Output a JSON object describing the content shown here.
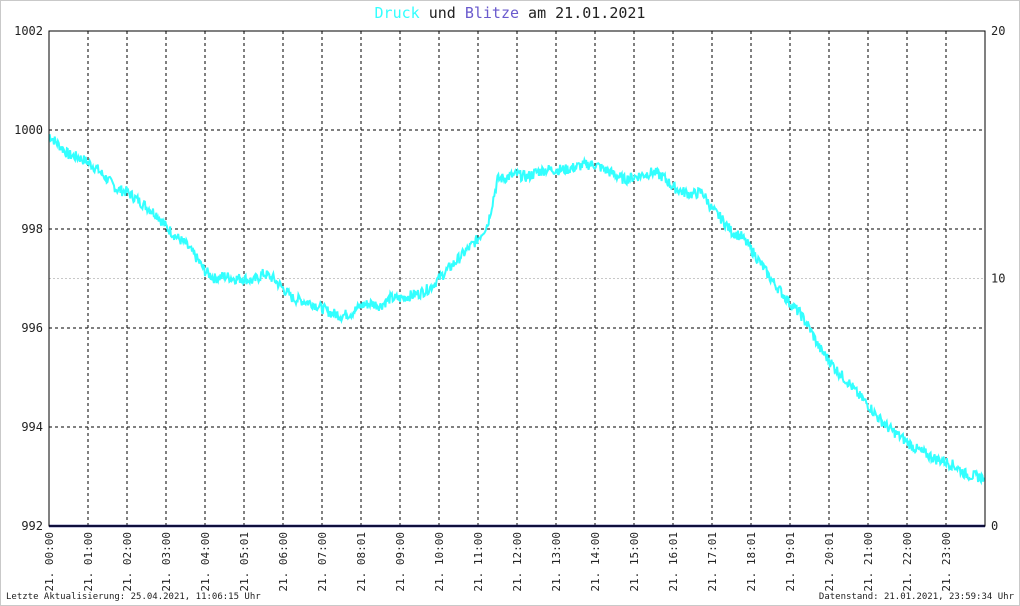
{
  "title": {
    "part1": "Druck",
    "part2": " und ",
    "part3": "Blitze",
    "part4": " am 21.01.2021",
    "color1": "#33ffff",
    "color3": "#6a5acd",
    "color_text": "#222222"
  },
  "footer": {
    "left": "Letzte Aktualisierung: 25.04.2021, 11:06:15 Uhr",
    "right": "Datenstand: 21.01.2021, 23:59:34 Uhr"
  },
  "chart_data": {
    "type": "line",
    "xlabel": "",
    "ylabel": "",
    "ylim_left": [
      992,
      1002
    ],
    "ylim_right": [
      0,
      20
    ],
    "yticks_left": [
      "1002",
      "1000",
      "998",
      "996",
      "994",
      "992"
    ],
    "yticks_right": [
      "20",
      "10",
      "0"
    ],
    "xticks": [
      "21. 00:00",
      "21. 01:00",
      "21. 02:00",
      "21. 03:00",
      "21. 04:00",
      "21. 05:01",
      "21. 06:00",
      "21. 07:00",
      "21. 08:01",
      "21. 09:00",
      "21. 10:00",
      "21. 11:00",
      "21. 12:00",
      "21. 13:00",
      "21. 14:00",
      "21. 15:00",
      "21. 16:01",
      "21. 17:01",
      "21. 18:01",
      "21. 19:01",
      "21. 20:01",
      "21. 21:00",
      "21. 22:00",
      "21. 23:00"
    ],
    "grid": true,
    "series": [
      {
        "name": "Druck",
        "color": "#33ffff",
        "axis": "left",
        "hours": [
          0,
          0.25,
          0.5,
          0.75,
          1,
          1.25,
          1.5,
          1.75,
          2,
          2.25,
          2.5,
          2.75,
          3,
          3.25,
          3.5,
          3.75,
          4,
          4.25,
          4.5,
          4.75,
          5,
          5.25,
          5.5,
          5.75,
          6,
          6.25,
          6.5,
          6.75,
          7,
          7.25,
          7.5,
          7.75,
          8,
          8.25,
          8.5,
          8.75,
          9,
          9.25,
          9.5,
          9.75,
          10,
          10.25,
          10.5,
          10.75,
          11,
          11.25,
          11.5,
          11.75,
          12,
          12.25,
          12.5,
          12.75,
          13,
          13.25,
          13.5,
          13.75,
          14,
          14.25,
          14.5,
          14.75,
          15,
          15.25,
          15.5,
          15.75,
          16,
          16.25,
          16.5,
          16.75,
          17,
          17.25,
          17.5,
          17.75,
          18,
          18.25,
          18.5,
          18.75,
          19,
          19.25,
          19.5,
          19.75,
          20,
          20.25,
          20.5,
          20.75,
          21,
          21.25,
          21.5,
          21.75,
          22,
          22.25,
          22.5,
          22.75,
          23,
          23.25,
          23.5,
          23.75,
          23.97
        ],
        "values": [
          999.9,
          999.7,
          999.5,
          999.45,
          999.35,
          999.2,
          999.0,
          998.8,
          998.75,
          998.6,
          998.45,
          998.3,
          998.05,
          997.85,
          997.7,
          997.45,
          997.15,
          997.0,
          997.05,
          997.0,
          997.0,
          996.95,
          997.1,
          997.0,
          996.8,
          996.6,
          996.55,
          996.5,
          996.4,
          996.3,
          996.25,
          996.3,
          996.45,
          996.5,
          996.45,
          996.6,
          996.6,
          996.65,
          996.7,
          996.8,
          997.0,
          997.2,
          997.4,
          997.6,
          997.8,
          998.1,
          999.0,
          999.05,
          999.1,
          999.05,
          999.15,
          999.2,
          999.2,
          999.2,
          999.25,
          999.3,
          999.3,
          999.2,
          999.1,
          999.0,
          999.05,
          999.1,
          999.15,
          999.05,
          998.85,
          998.75,
          998.7,
          998.75,
          998.4,
          998.2,
          997.95,
          997.85,
          997.6,
          997.3,
          997.0,
          996.75,
          996.5,
          996.3,
          996.0,
          995.6,
          995.35,
          995.1,
          994.9,
          994.65,
          994.45,
          994.2,
          994.0,
          993.85,
          993.7,
          993.55,
          993.45,
          993.35,
          993.3,
          993.2,
          993.05,
          993.0,
          992.98
        ]
      },
      {
        "name": "Blitze",
        "color": "#1e1e78",
        "axis": "right",
        "hours": [
          0,
          24
        ],
        "values": [
          0,
          0
        ]
      }
    ]
  }
}
